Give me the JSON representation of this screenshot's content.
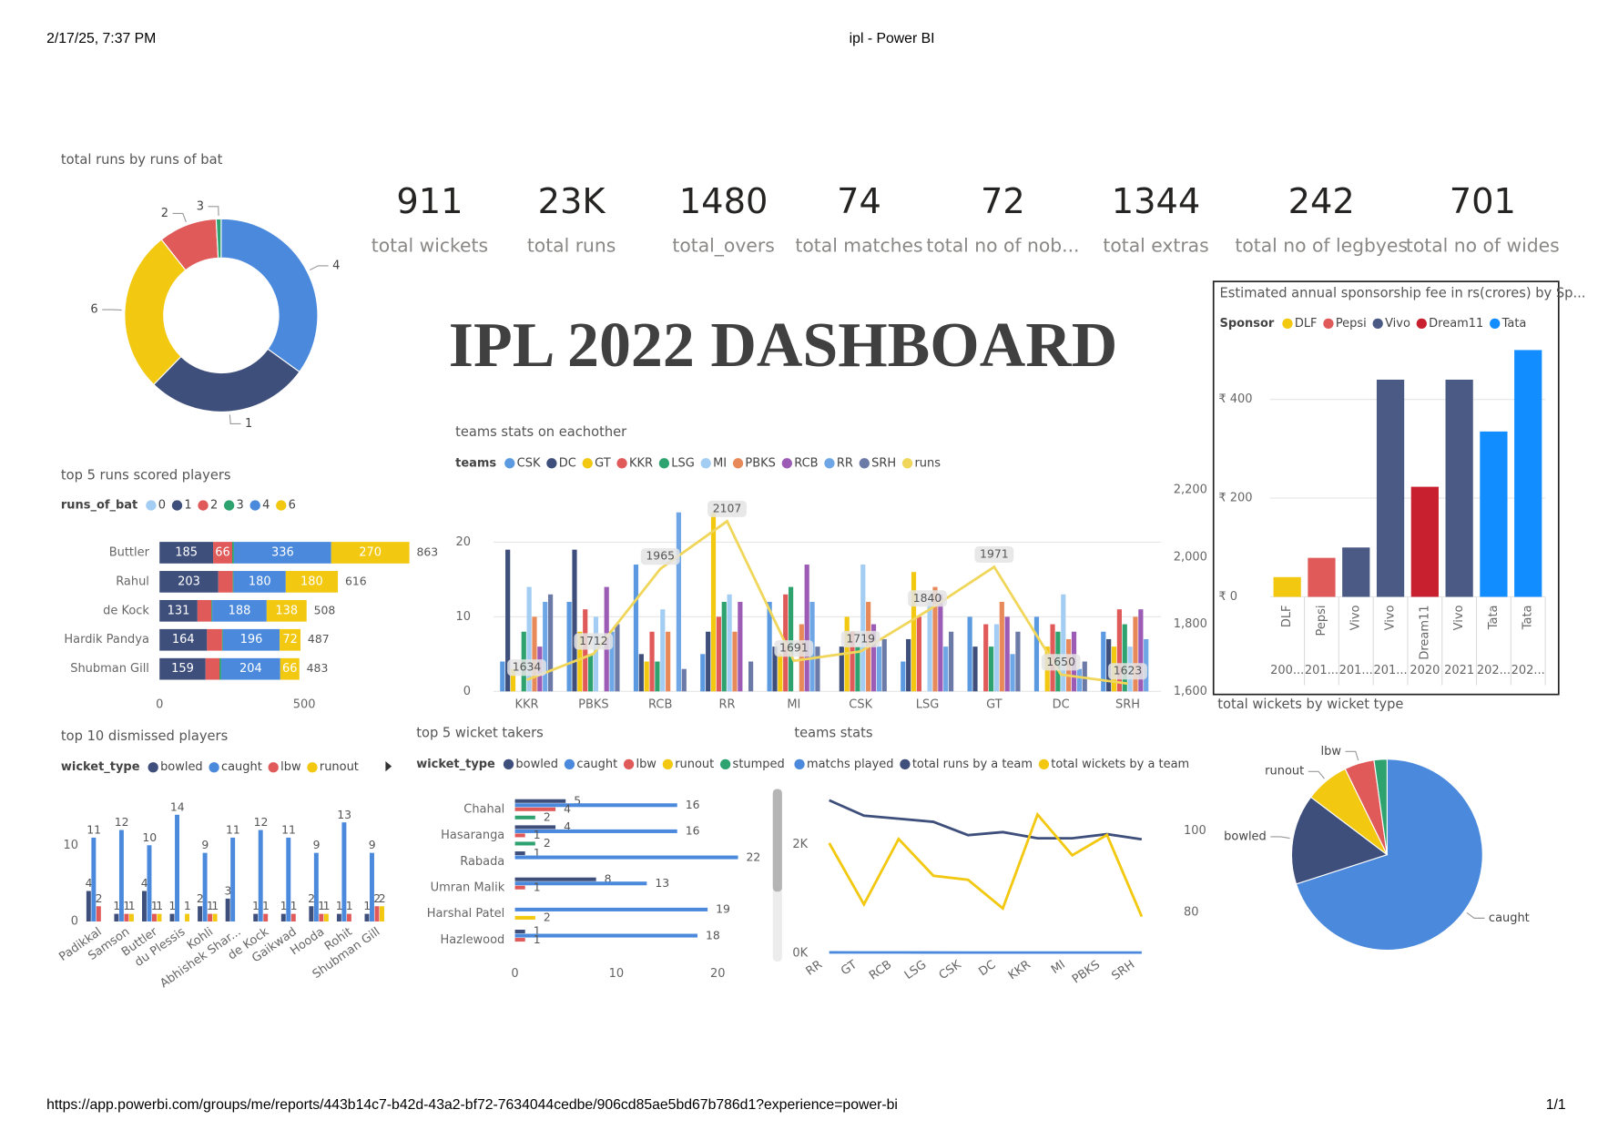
{
  "page": {
    "date": "2/17/25, 7:37 PM",
    "tab_title": "ipl - Power BI",
    "url": "https://app.powerbi.com/groups/me/reports/443b14c7-b42d-43a2-bf72-7634044cedbe/906cd85ae5bd67b786d1?experience=power-bi",
    "page_number": "1/1"
  },
  "dashboard_title": "IPL 2022 DASHBOARD",
  "kpis": [
    {
      "value": "911",
      "label": "total wickets"
    },
    {
      "value": "23K",
      "label": "total runs"
    },
    {
      "value": "1480",
      "label": "total_overs"
    },
    {
      "value": "74",
      "label": "total  matches"
    },
    {
      "value": "72",
      "label": "total no of nob..."
    },
    {
      "value": "1344",
      "label": "total extras"
    },
    {
      "value": "242",
      "label": "total no of legbyes"
    },
    {
      "value": "701",
      "label": "total no of wides"
    }
  ],
  "chart_data": [
    {
      "type": "donut",
      "title": "total runs by runs of bat",
      "categories": [
        "4",
        "1",
        "6",
        "2",
        "3"
      ],
      "values": [
        8000,
        6260,
        6200,
        2240,
        190
      ],
      "colors": [
        "#4a89dc",
        "#3f4f7c",
        "#f2c811",
        "#e05a5a",
        "#2ea36f"
      ]
    },
    {
      "type": "stacked_bar",
      "title": "top 5 runs scored players",
      "legend_title": "runs_of_bat",
      "categories": [
        "Buttler",
        "Rahul",
        "de Kock",
        "Hardik Pandya",
        "Shubman Gill"
      ],
      "series": [
        {
          "name": "0",
          "color": "#a3cdf3",
          "values": [
            0,
            0,
            0,
            0,
            0
          ]
        },
        {
          "name": "1",
          "color": "#3f4f7c",
          "values": [
            185,
            203,
            131,
            164,
            159
          ]
        },
        {
          "name": "2",
          "color": "#e05a5a",
          "values": [
            66,
            50,
            48,
            52,
            48
          ]
        },
        {
          "name": "3",
          "color": "#2ea36f",
          "values": [
            6,
            3,
            3,
            3,
            6
          ]
        },
        {
          "name": "4",
          "color": "#4a89dc",
          "values": [
            336,
            180,
            188,
            196,
            204
          ]
        },
        {
          "name": "6",
          "color": "#f2c811",
          "values": [
            270,
            180,
            138,
            72,
            66
          ]
        }
      ],
      "totals": [
        863,
        616,
        508,
        487,
        483
      ],
      "xlim": [
        0,
        880
      ],
      "xticks": [
        0,
        500
      ]
    },
    {
      "type": "bar_line",
      "title": "teams stats on eachother",
      "legend_title": "teams",
      "categories": [
        "KKR",
        "PBKS",
        "RCB",
        "RR",
        "MI",
        "CSK",
        "LSG",
        "GT",
        "DC",
        "SRH"
      ],
      "series": [
        {
          "name": "CSK",
          "color": "#5b9ae0",
          "values": [
            4,
            12,
            17,
            5,
            12,
            0,
            4,
            10,
            10,
            8
          ]
        },
        {
          "name": "DC",
          "color": "#3f4f7c",
          "values": [
            19,
            19,
            5,
            8,
            6,
            6,
            7,
            6,
            0,
            7
          ]
        },
        {
          "name": "GT",
          "color": "#f2c811",
          "values": [
            3,
            8,
            4,
            24,
            5,
            10,
            16,
            0,
            6,
            6
          ]
        },
        {
          "name": "KKR",
          "color": "#e05a5a",
          "values": [
            0,
            11,
            8,
            10,
            13,
            8,
            10,
            9,
            9,
            11
          ]
        },
        {
          "name": "LSG",
          "color": "#2ea36f",
          "values": [
            8,
            5,
            4,
            12,
            14,
            6,
            0,
            6,
            8,
            9
          ]
        },
        {
          "name": "MI",
          "color": "#a3cdf3",
          "values": [
            14,
            10,
            11,
            13,
            0,
            17,
            12,
            9,
            13,
            6
          ]
        },
        {
          "name": "PBKS",
          "color": "#e8895a",
          "values": [
            10,
            0,
            8,
            8,
            9,
            12,
            14,
            12,
            7,
            10
          ]
        },
        {
          "name": "RCB",
          "color": "#9c5bb5",
          "values": [
            6,
            14,
            0,
            12,
            17,
            9,
            13,
            10,
            8,
            11
          ]
        },
        {
          "name": "RR",
          "color": "#6ea6e6",
          "values": [
            12,
            8,
            24,
            0,
            12,
            6,
            6,
            5,
            3,
            7
          ]
        },
        {
          "name": "SRH",
          "color": "#6b7aa6",
          "values": [
            13,
            9,
            3,
            4,
            6,
            7,
            8,
            8,
            4,
            0
          ]
        },
        {
          "name": "runs",
          "color": "#f0d65a",
          "axis": "y2",
          "values": [
            1634,
            1712,
            1965,
            2107,
            1691,
            1719,
            1840,
            1971,
            1650,
            1623
          ]
        }
      ],
      "ylim": [
        0,
        27
      ],
      "yticks": [
        0,
        10,
        20
      ],
      "y2lim": [
        1600,
        2200
      ],
      "y2ticks": [
        {
          "value": 1600,
          "label": "1,600"
        },
        {
          "value": 1800,
          "label": "1,800"
        },
        {
          "value": 2000,
          "label": "2,000"
        },
        {
          "value": 2200,
          "label": "2,200"
        }
      ],
      "grid": true
    },
    {
      "type": "grouped_column",
      "title": "top 10 dismissed players",
      "legend_title": "wicket_type",
      "categories": [
        "Padikkal",
        "Samson",
        "Buttler",
        "du Plessis",
        "Kohli",
        "Abhishek Shar...",
        "de Kock",
        "Gaikwad",
        "Hooda",
        "Rohit",
        "Shubman Gill"
      ],
      "series": [
        {
          "name": "bowled",
          "color": "#3f4f7c",
          "values": [
            4,
            1,
            4,
            1,
            2,
            3,
            1,
            1,
            2,
            1,
            1
          ]
        },
        {
          "name": "caught",
          "color": "#4a89dc",
          "values": [
            11,
            12,
            10,
            14,
            9,
            11,
            12,
            11,
            9,
            13,
            9
          ]
        },
        {
          "name": "lbw",
          "color": "#e05a5a",
          "values": [
            2,
            1,
            1,
            0,
            1,
            0,
            1,
            1,
            1,
            1,
            2
          ]
        },
        {
          "name": "runout",
          "color": "#f2c811",
          "values": [
            0,
            1,
            1,
            1,
            1,
            0,
            0,
            0,
            1,
            0,
            2
          ]
        }
      ],
      "ylim": [
        0,
        15.5
      ],
      "yticks": [
        0,
        10
      ]
    },
    {
      "type": "grouped_bar",
      "title": "top 5 wicket takers",
      "legend_title": "wicket_type",
      "categories": [
        "Chahal",
        "Hasaranga",
        "Rabada",
        "Umran Malik",
        "Harshal Patel",
        "Hazlewood"
      ],
      "series": [
        {
          "name": "bowled",
          "color": "#3f4f7c",
          "values": [
            5,
            4,
            1,
            8,
            0,
            1
          ]
        },
        {
          "name": "caught",
          "color": "#4a89dc",
          "values": [
            16,
            16,
            22,
            13,
            19,
            18
          ]
        },
        {
          "name": "lbw",
          "color": "#e05a5a",
          "values": [
            4,
            1,
            0,
            1,
            0,
            1
          ]
        },
        {
          "name": "runout",
          "color": "#f2c811",
          "values": [
            0,
            0,
            0,
            0,
            2,
            0
          ]
        },
        {
          "name": "stumped",
          "color": "#2ea36f",
          "values": [
            2,
            2,
            0,
            0,
            0,
            0
          ]
        }
      ],
      "xlim": [
        0,
        23
      ],
      "xticks": [
        0,
        10,
        20
      ]
    },
    {
      "type": "line",
      "title": "teams stats",
      "categories": [
        "RR",
        "GT",
        "RCB",
        "LSG",
        "CSK",
        "DC",
        "KKR",
        "MI",
        "PBKS",
        "SRH"
      ],
      "series": [
        {
          "name": "matchs played",
          "color": "#4a89dc",
          "values": [
            17,
            16,
            16,
            15,
            14,
            14,
            14,
            14,
            14,
            14
          ]
        },
        {
          "name": "total runs by a team",
          "color": "#3f4f7c",
          "values": [
            2811,
            2528,
            2472,
            2415,
            2170,
            2226,
            2113,
            2113,
            2189,
            2094
          ]
        },
        {
          "name": "total wickets by a team",
          "color": "#f2c811",
          "axis": "y2",
          "values": [
            97,
            82,
            98,
            89,
            88,
            81,
            104,
            94,
            99,
            79
          ]
        }
      ],
      "ylim": [
        0,
        3000
      ],
      "yticks": [
        {
          "value": 0,
          "label": "0K"
        },
        {
          "value": 2000,
          "label": "2K"
        }
      ],
      "y2lim": [
        70,
        110
      ],
      "y2ticks": [
        80,
        100
      ]
    },
    {
      "type": "column",
      "title": "Estimated annual sponsorship fee in rs(crores) by Sp...",
      "legend_title": "Sponsor",
      "legend": [
        {
          "name": "DLF",
          "color": "#f2c811"
        },
        {
          "name": "Pepsi",
          "color": "#e05a5a"
        },
        {
          "name": "Vivo",
          "color": "#4a5a85"
        },
        {
          "name": "Dream11",
          "color": "#c8202f"
        },
        {
          "name": "Tata",
          "color": "#118dff"
        }
      ],
      "categories": [
        "DLF",
        "Pepsi",
        "Vivo",
        "Vivo",
        "Dream11",
        "Vivo",
        "Tata",
        "Tata"
      ],
      "year_labels": [
        "200...",
        "201...",
        "201...",
        "201...",
        "2020",
        "2021",
        "202...",
        "202..."
      ],
      "values": [
        40,
        79,
        100,
        440,
        223,
        440,
        335,
        500
      ],
      "colors": [
        "#f2c811",
        "#e05a5a",
        "#4a5a85",
        "#4a5a85",
        "#c8202f",
        "#4a5a85",
        "#118dff",
        "#118dff"
      ],
      "ylim": [
        0,
        512
      ],
      "yticks": [
        {
          "value": 0,
          "label": "₹ 0"
        },
        {
          "value": 200,
          "label": "₹ 200"
        },
        {
          "value": 400,
          "label": "₹ 400"
        }
      ],
      "grid": true
    },
    {
      "type": "pie",
      "title": "total wickets by wicket type",
      "categories": [
        "caught",
        "bowled",
        "runout",
        "lbw",
        null
      ],
      "values": [
        638,
        139,
        68,
        46,
        20
      ],
      "colors": [
        "#4a89dc",
        "#3f4f7c",
        "#f2c811",
        "#e05a5a",
        "#2ea36f"
      ]
    }
  ]
}
